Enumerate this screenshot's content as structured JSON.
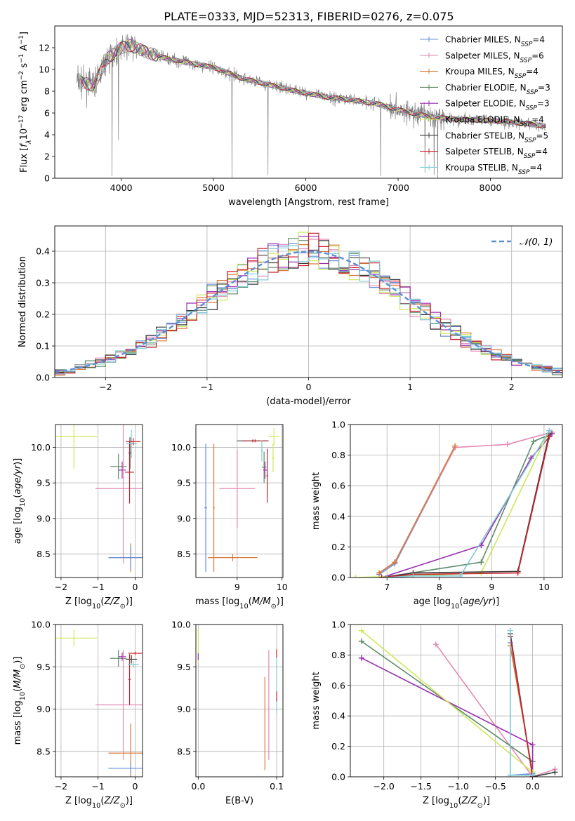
{
  "figure_title": "PLATE=0333, MJD=52313, FIBERID=0276, z=0.075",
  "colors": {
    "Chabrier MILES": "#6a8fd8",
    "Salpeter MILES": "#e38bb5",
    "Kroupa MILES": "#d9793a",
    "Chabrier ELODIE": "#5e8a6a",
    "Salpeter ELODIE": "#9a2fb0",
    "Kroupa ELODIE": "#cde85a",
    "Chabrier STELIB": "#3a3a3a",
    "Salpeter STELIB": "#c8242b",
    "Kroupa STELIB": "#7fcbd6",
    "observed": "#808080",
    "gaussian": "#5b8fd6",
    "grid": "#b0b0b0"
  },
  "chart_data": [
    {
      "id": "spectrum",
      "type": "line",
      "xlabel": "wavelength [Angstrom, rest frame]",
      "ylabel": "Flux [f_λ10^-17 erg cm^-2 s^-1 A^-1]",
      "xlim": [
        3280,
        8780
      ],
      "ylim": [
        0,
        14
      ],
      "xticks": [
        4000,
        5000,
        6000,
        7000,
        8000
      ],
      "yticks": [
        0,
        2,
        4,
        6,
        8,
        10,
        12
      ],
      "grid": false,
      "legend_position": "upper right",
      "legend": [
        {
          "model": "Chabrier MILES",
          "n": "4"
        },
        {
          "model": "Salpeter MILES",
          "n": "6"
        },
        {
          "model": "Kroupa MILES",
          "n": "4"
        },
        {
          "model": "Chabrier ELODIE",
          "n": "3"
        },
        {
          "model": "Salpeter ELODIE",
          "n": "3"
        },
        {
          "model": "Kroupa ELODIE",
          "n": "4"
        },
        {
          "model": "Chabrier STELIB",
          "n": "5"
        },
        {
          "model": "Salpeter STELIB",
          "n": "4"
        },
        {
          "model": "Kroupa STELIB",
          "n": "4"
        }
      ],
      "continuum": {
        "x": [
          3520,
          3700,
          3850,
          4000,
          4100,
          4300,
          4500,
          4800,
          5000,
          5300,
          5600,
          5900,
          6200,
          6500,
          6800,
          7000,
          7200,
          7400,
          7700,
          8000,
          8300,
          8600
        ],
        "y": [
          9.0,
          8.5,
          11.0,
          12.0,
          12.2,
          11.5,
          11.0,
          10.5,
          10.2,
          9.2,
          8.6,
          8.0,
          7.5,
          7.2,
          6.8,
          6.3,
          5.9,
          5.6,
          5.4,
          5.3,
          5.1,
          4.8
        ]
      },
      "absorption_features": [
        {
          "x": 3900,
          "y": 0.2
        },
        {
          "x": 3970,
          "y": 3.5
        },
        {
          "x": 5200,
          "y": 0.0
        },
        {
          "x": 5590,
          "y": 0.3
        },
        {
          "x": 6810,
          "y": 0.2
        },
        {
          "x": 7290,
          "y": 0.5
        },
        {
          "x": 7390,
          "y": 0.3
        },
        {
          "x": 7430,
          "y": 0.0
        }
      ]
    },
    {
      "id": "residuals",
      "type": "step",
      "xlabel": "(data-model)/error",
      "ylabel": "Normed distribution",
      "xlim": [
        -2.5,
        2.5
      ],
      "ylim": [
        0,
        0.48
      ],
      "xticks": [
        -2,
        -1,
        0,
        1,
        2
      ],
      "yticks": [
        0.0,
        0.1,
        0.2,
        0.3,
        0.4
      ],
      "grid": true,
      "bin_width": 0.1,
      "gaussian_label": "𝒩(0, 1)",
      "legend_position": "upper right"
    },
    {
      "id": "age_vs_Z",
      "type": "errorbar",
      "xlabel": "Z [log10(Z/Z⊙)]",
      "ylabel": "age  [log10(age/yr)]",
      "xlim": [
        -2.15,
        0.2
      ],
      "ylim": [
        8.17,
        10.32
      ],
      "xticks": [
        -2,
        -1,
        0
      ],
      "yticks": [
        8.5,
        9.0,
        9.5,
        10.0
      ],
      "grid": true,
      "points": [
        {
          "model": "Kroupa ELODIE",
          "x": -1.65,
          "xerr": 0.62,
          "y": 10.15,
          "yerr": 0.45
        },
        {
          "model": "Chabrier ELODIE",
          "x": -0.45,
          "xerr": 0.22,
          "y": 9.73,
          "yerr": 0.18
        },
        {
          "model": "Salpeter ELODIE",
          "x": -0.35,
          "xerr": 0.1,
          "y": 9.68,
          "yerr": 0.12
        },
        {
          "model": "Salpeter MILES",
          "x": -0.32,
          "xerr": 0.75,
          "y": 9.42,
          "yerr": 1.05
        },
        {
          "model": "Kroupa MILES",
          "x": -0.12,
          "xerr": 0.6,
          "y": 8.45,
          "yerr": 0.2
        },
        {
          "model": "Chabrier MILES",
          "x": -0.12,
          "xerr": 0.6,
          "y": 8.45,
          "yerr": 0.16
        },
        {
          "model": "Chabrier STELIB",
          "x": -0.14,
          "xerr": 0.04,
          "y": 9.92,
          "yerr": 0.22
        },
        {
          "model": "Salpeter STELIB",
          "x": -0.15,
          "xerr": 0.12,
          "y": 9.65,
          "yerr": 0.44
        },
        {
          "model": "Kroupa STELIB",
          "x": -0.1,
          "xerr": 0.15,
          "y": 10.05,
          "yerr": 0.2
        },
        {
          "model": "Salpeter STELIB",
          "x": -0.05,
          "xerr": 0.2,
          "y": 10.08,
          "yerr": 0.05
        }
      ]
    },
    {
      "id": "age_vs_mass",
      "type": "errorbar",
      "xlabel": "mass [log10(M/M⊙)]",
      "ylabel": "",
      "xlim": [
        8.08,
        10.02
      ],
      "ylim": [
        8.17,
        10.32
      ],
      "xticks": [
        9,
        10
      ],
      "yticks": [
        8.5,
        9.0,
        9.5,
        10.0
      ],
      "grid": true,
      "points": [
        {
          "model": "Chabrier MILES",
          "x": 8.3,
          "xerr": 0.03,
          "y": 9.15,
          "yerr": 0.9
        },
        {
          "model": "Kroupa MILES",
          "x": 8.9,
          "xerr": 0.55,
          "y": 8.45,
          "yerr": 0.05
        },
        {
          "model": "Kroupa MILES",
          "x": 8.48,
          "xerr": 0.02,
          "y": 9.15,
          "yerr": 0.9
        },
        {
          "model": "Salpeter MILES",
          "x": 9.0,
          "xerr": 0.4,
          "y": 9.42,
          "yerr": 0.55
        },
        {
          "model": "Chabrier STELIB",
          "x": 9.35,
          "xerr": 0.35,
          "y": 10.09,
          "yerr": 0.02
        },
        {
          "model": "Salpeter STELIB",
          "x": 9.4,
          "xerr": 0.28,
          "y": 10.09,
          "yerr": 0.02
        },
        {
          "model": "Kroupa STELIB",
          "x": 9.55,
          "xerr": 0.03,
          "y": 9.95,
          "yerr": 0.15
        },
        {
          "model": "Salpeter STELIB",
          "x": 9.67,
          "xerr": 0.02,
          "y": 9.6,
          "yerr": 0.38
        },
        {
          "model": "Chabrier ELODIE",
          "x": 9.6,
          "xerr": 0.05,
          "y": 9.72,
          "yerr": 0.22
        },
        {
          "model": "Salpeter ELODIE",
          "x": 9.62,
          "xerr": 0.04,
          "y": 9.68,
          "yerr": 0.12
        },
        {
          "model": "Kroupa ELODIE",
          "x": 9.82,
          "xerr": 0.12,
          "y": 10.15,
          "yerr": 0.12
        },
        {
          "model": "Kroupa ELODIE",
          "x": 9.8,
          "xerr": 0.03,
          "y": 9.85,
          "yerr": 0.2
        }
      ]
    },
    {
      "id": "weight_vs_age",
      "type": "line",
      "xlabel": "age  [log10(age/yr)]",
      "ylabel": "mass weight",
      "xlim": [
        6.3,
        10.35
      ],
      "ylim": [
        0,
        1
      ],
      "xticks": [
        7,
        8,
        9,
        10
      ],
      "yticks": [
        0.0,
        0.2,
        0.4,
        0.6,
        0.8,
        1.0
      ],
      "grid": true,
      "series": [
        {
          "model": "Chabrier MILES",
          "x": [
            6.85,
            7.15,
            8.3
          ],
          "y": [
            0.02,
            0.09,
            0.85
          ]
        },
        {
          "model": "Salpeter MILES",
          "x": [
            6.85,
            7.15,
            8.3,
            9.3,
            10.15
          ],
          "y": [
            0.03,
            0.1,
            0.85,
            0.87,
            0.95
          ]
        },
        {
          "model": "Kroupa MILES",
          "x": [
            6.85,
            7.15,
            8.3
          ],
          "y": [
            0.03,
            0.1,
            0.86
          ]
        },
        {
          "model": "Chabrier ELODIE",
          "x": [
            6.9,
            8.8,
            9.8,
            10.15
          ],
          "y": [
            0.0,
            0.1,
            0.89,
            0.94
          ]
        },
        {
          "model": "Salpeter ELODIE",
          "x": [
            6.9,
            8.8,
            9.75,
            10.15
          ],
          "y": [
            0.0,
            0.21,
            0.78,
            0.94
          ]
        },
        {
          "model": "Kroupa ELODIE",
          "x": [
            6.4,
            7.5,
            8.8,
            10.1
          ],
          "y": [
            0.0,
            0.01,
            0.03,
            0.96
          ]
        },
        {
          "model": "Chabrier STELIB",
          "x": [
            6.9,
            7.5,
            9.5,
            10.1
          ],
          "y": [
            0.0,
            0.03,
            0.04,
            0.94
          ]
        },
        {
          "model": "Salpeter STELIB",
          "x": [
            6.9,
            7.5,
            9.5,
            10.1
          ],
          "y": [
            0.0,
            0.02,
            0.03,
            0.92
          ]
        },
        {
          "model": "Kroupa STELIB",
          "x": [
            7.0,
            7.5,
            8.4,
            10.1
          ],
          "y": [
            0.0,
            0.01,
            0.01,
            0.96
          ]
        }
      ]
    },
    {
      "id": "mass_vs_Z",
      "type": "errorbar",
      "xlabel": "Z [log10(Z/Z⊙)]",
      "ylabel": "mass [log10(M/M⊙)]",
      "xlim": [
        -2.15,
        0.2
      ],
      "ylim": [
        8.2,
        10.0
      ],
      "xticks": [
        -2,
        -1,
        0
      ],
      "yticks": [
        8.5,
        9.0,
        9.5,
        10.0
      ],
      "grid": true,
      "points": [
        {
          "model": "Kroupa ELODIE",
          "x": -1.65,
          "xerr": 0.62,
          "y": 9.84,
          "yerr": 0.1
        },
        {
          "model": "Chabrier ELODIE",
          "x": -0.45,
          "xerr": 0.22,
          "y": 9.6,
          "yerr": 0.1
        },
        {
          "model": "Salpeter ELODIE",
          "x": -0.35,
          "xerr": 0.1,
          "y": 9.62,
          "yerr": 0.05
        },
        {
          "model": "Salpeter MILES",
          "x": -0.32,
          "xerr": 0.75,
          "y": 9.05,
          "yerr": 0.65
        },
        {
          "model": "Kroupa MILES",
          "x": -0.12,
          "xerr": 0.6,
          "y": 8.48,
          "yerr": 0.35
        },
        {
          "model": "Chabrier MILES",
          "x": -0.12,
          "xerr": 0.6,
          "y": 8.3,
          "yerr": 0.06
        },
        {
          "model": "Chabrier STELIB",
          "x": -0.1,
          "xerr": 0.15,
          "y": 9.59,
          "yerr": 0.05
        },
        {
          "model": "Salpeter STELIB",
          "x": 0.0,
          "xerr": 0.18,
          "y": 9.66,
          "yerr": 0.02
        },
        {
          "model": "Salpeter STELIB",
          "x": -0.15,
          "xerr": 0.03,
          "y": 9.35,
          "yerr": 0.3
        },
        {
          "model": "Kroupa STELIB",
          "x": -0.05,
          "xerr": 0.15,
          "y": 9.53,
          "yerr": 0.04
        }
      ]
    },
    {
      "id": "mass_vs_ebv",
      "type": "errorbar",
      "xlabel": "E(B-V)",
      "ylabel": "",
      "xlim": [
        -0.003,
        0.108
      ],
      "ylim": [
        8.2,
        10.0
      ],
      "xticks": [
        0.0,
        0.1
      ],
      "yticks": [
        8.5,
        9.0,
        9.5,
        10.0
      ],
      "grid": true,
      "points": [
        {
          "model": "Kroupa ELODIE",
          "x": 0.0,
          "xerr": 0.0,
          "y": 9.75,
          "yerr": 0.2
        },
        {
          "model": "Salpeter ELODIE",
          "x": 0.0,
          "xerr": 0.0,
          "y": 9.62,
          "yerr": 0.04
        },
        {
          "model": "Kroupa MILES",
          "x": 0.085,
          "xerr": 0.0,
          "y": 8.83,
          "yerr": 0.55
        },
        {
          "model": "Salpeter MILES",
          "x": 0.09,
          "xerr": 0.0,
          "y": 9.05,
          "yerr": 0.65
        },
        {
          "model": "Kroupa STELIB",
          "x": 0.1,
          "xerr": 0.0,
          "y": 9.3,
          "yerr": 0.35
        },
        {
          "model": "Salpeter STELIB",
          "x": 0.1,
          "xerr": 0.0,
          "y": 9.66,
          "yerr": 0.05
        },
        {
          "model": "Salpeter STELIB",
          "x": 0.1,
          "xerr": 0.0,
          "y": 9.15,
          "yerr": 0.06
        }
      ]
    },
    {
      "id": "weight_vs_Z",
      "type": "line",
      "xlabel": "Z [log10(Z/Z⊙)]",
      "ylabel": "mass weight",
      "xlim": [
        -2.45,
        0.4
      ],
      "ylim": [
        0,
        1
      ],
      "xticks": [
        -2.0,
        -1.5,
        -1.0,
        -0.5,
        0.0
      ],
      "yticks": [
        0.0,
        0.2,
        0.4,
        0.6,
        0.8,
        1.0
      ],
      "grid": true,
      "series": [
        {
          "model": "Chabrier MILES",
          "x": [
            -0.3,
            -0.3,
            0.0
          ],
          "y": [
            0.88,
            0.01,
            0.02
          ]
        },
        {
          "model": "Salpeter MILES",
          "x": [
            -1.3,
            0.0,
            0.3
          ],
          "y": [
            0.87,
            0.0,
            0.05
          ]
        },
        {
          "model": "Kroupa MILES",
          "x": [
            -0.3,
            0.0
          ],
          "y": [
            0.86,
            0.03
          ]
        },
        {
          "model": "Chabrier ELODIE",
          "x": [
            -2.3,
            0.0
          ],
          "y": [
            0.89,
            0.1
          ]
        },
        {
          "model": "Salpeter ELODIE",
          "x": [
            -2.3,
            0.0,
            0.0
          ],
          "y": [
            0.78,
            0.21,
            0.0
          ]
        },
        {
          "model": "Kroupa ELODIE",
          "x": [
            -2.3,
            0.0
          ],
          "y": [
            0.96,
            0.03
          ]
        },
        {
          "model": "Chabrier STELIB",
          "x": [
            -0.3,
            0.0,
            0.3
          ],
          "y": [
            0.94,
            0.0,
            0.03
          ]
        },
        {
          "model": "Salpeter STELIB",
          "x": [
            -0.3,
            0.0
          ],
          "y": [
            0.92,
            0.0
          ]
        },
        {
          "model": "Kroupa STELIB",
          "x": [
            -0.3,
            -0.3,
            0.0
          ],
          "y": [
            0.96,
            0.01,
            0.01
          ]
        }
      ]
    }
  ]
}
